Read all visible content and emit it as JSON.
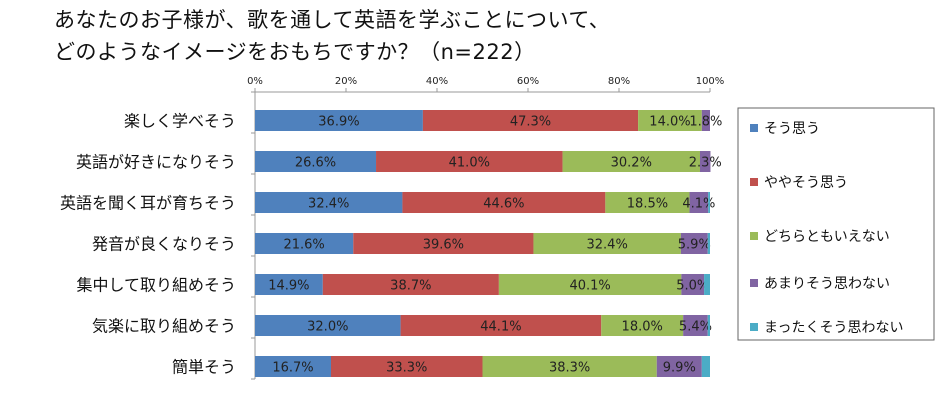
{
  "chart_data": {
    "type": "bar",
    "orientation": "horizontal",
    "stacked": "percent",
    "title_lines": [
      "あなたのお子様が、歌を通して英語を学ぶことについて、",
      "どのようなイメージをおもちですか？（n=222）"
    ],
    "categories": [
      "楽しく学べそう",
      "英語が好きになりそう",
      "英語を聞く耳が育ちそう",
      "発音が良くなりそう",
      "集中して取り組めそう",
      "気楽に取り組めそう",
      "簡単そう"
    ],
    "series": [
      {
        "name": "そう思う",
        "color": "#4F81BD",
        "values": [
          36.9,
          26.6,
          32.4,
          21.6,
          14.9,
          32.0,
          16.7
        ],
        "labels": [
          "36.9%",
          "26.6%",
          "32.4%",
          "21.6%",
          "14.9%",
          "32.0%",
          "16.7%"
        ]
      },
      {
        "name": "ややそう思う",
        "color": "#C0504D",
        "values": [
          47.3,
          41.0,
          44.6,
          39.6,
          38.7,
          44.1,
          33.3
        ],
        "labels": [
          "47.3%",
          "41.0%",
          "44.6%",
          "39.6%",
          "38.7%",
          "44.1%",
          "33.3%"
        ]
      },
      {
        "name": "どちらともいえない",
        "color": "#9BBB59",
        "values": [
          14.0,
          30.2,
          18.5,
          32.4,
          40.1,
          18.0,
          38.3
        ],
        "labels": [
          "14.0%",
          "30.2%",
          "18.5%",
          "32.4%",
          "40.1%",
          "18.0%",
          "38.3%"
        ]
      },
      {
        "name": "あまりそう思わない",
        "color": "#8064A2",
        "values": [
          1.8,
          2.3,
          4.1,
          5.9,
          5.0,
          5.4,
          9.9
        ],
        "labels": [
          "1.8%",
          "2.3%",
          "4.1%",
          "5.9%",
          "5.0%",
          "5.4%",
          "9.9%"
        ]
      },
      {
        "name": "まったくそう思わない",
        "color": "#4BACC6",
        "values": [
          0,
          0,
          0.4,
          0.5,
          1.3,
          0.5,
          1.8
        ],
        "labels": []
      }
    ],
    "xlim": [
      0,
      100
    ],
    "xticks": [
      "0%",
      "20%",
      "40%",
      "60%",
      "80%",
      "100%"
    ],
    "grid": false,
    "legend": "right"
  }
}
